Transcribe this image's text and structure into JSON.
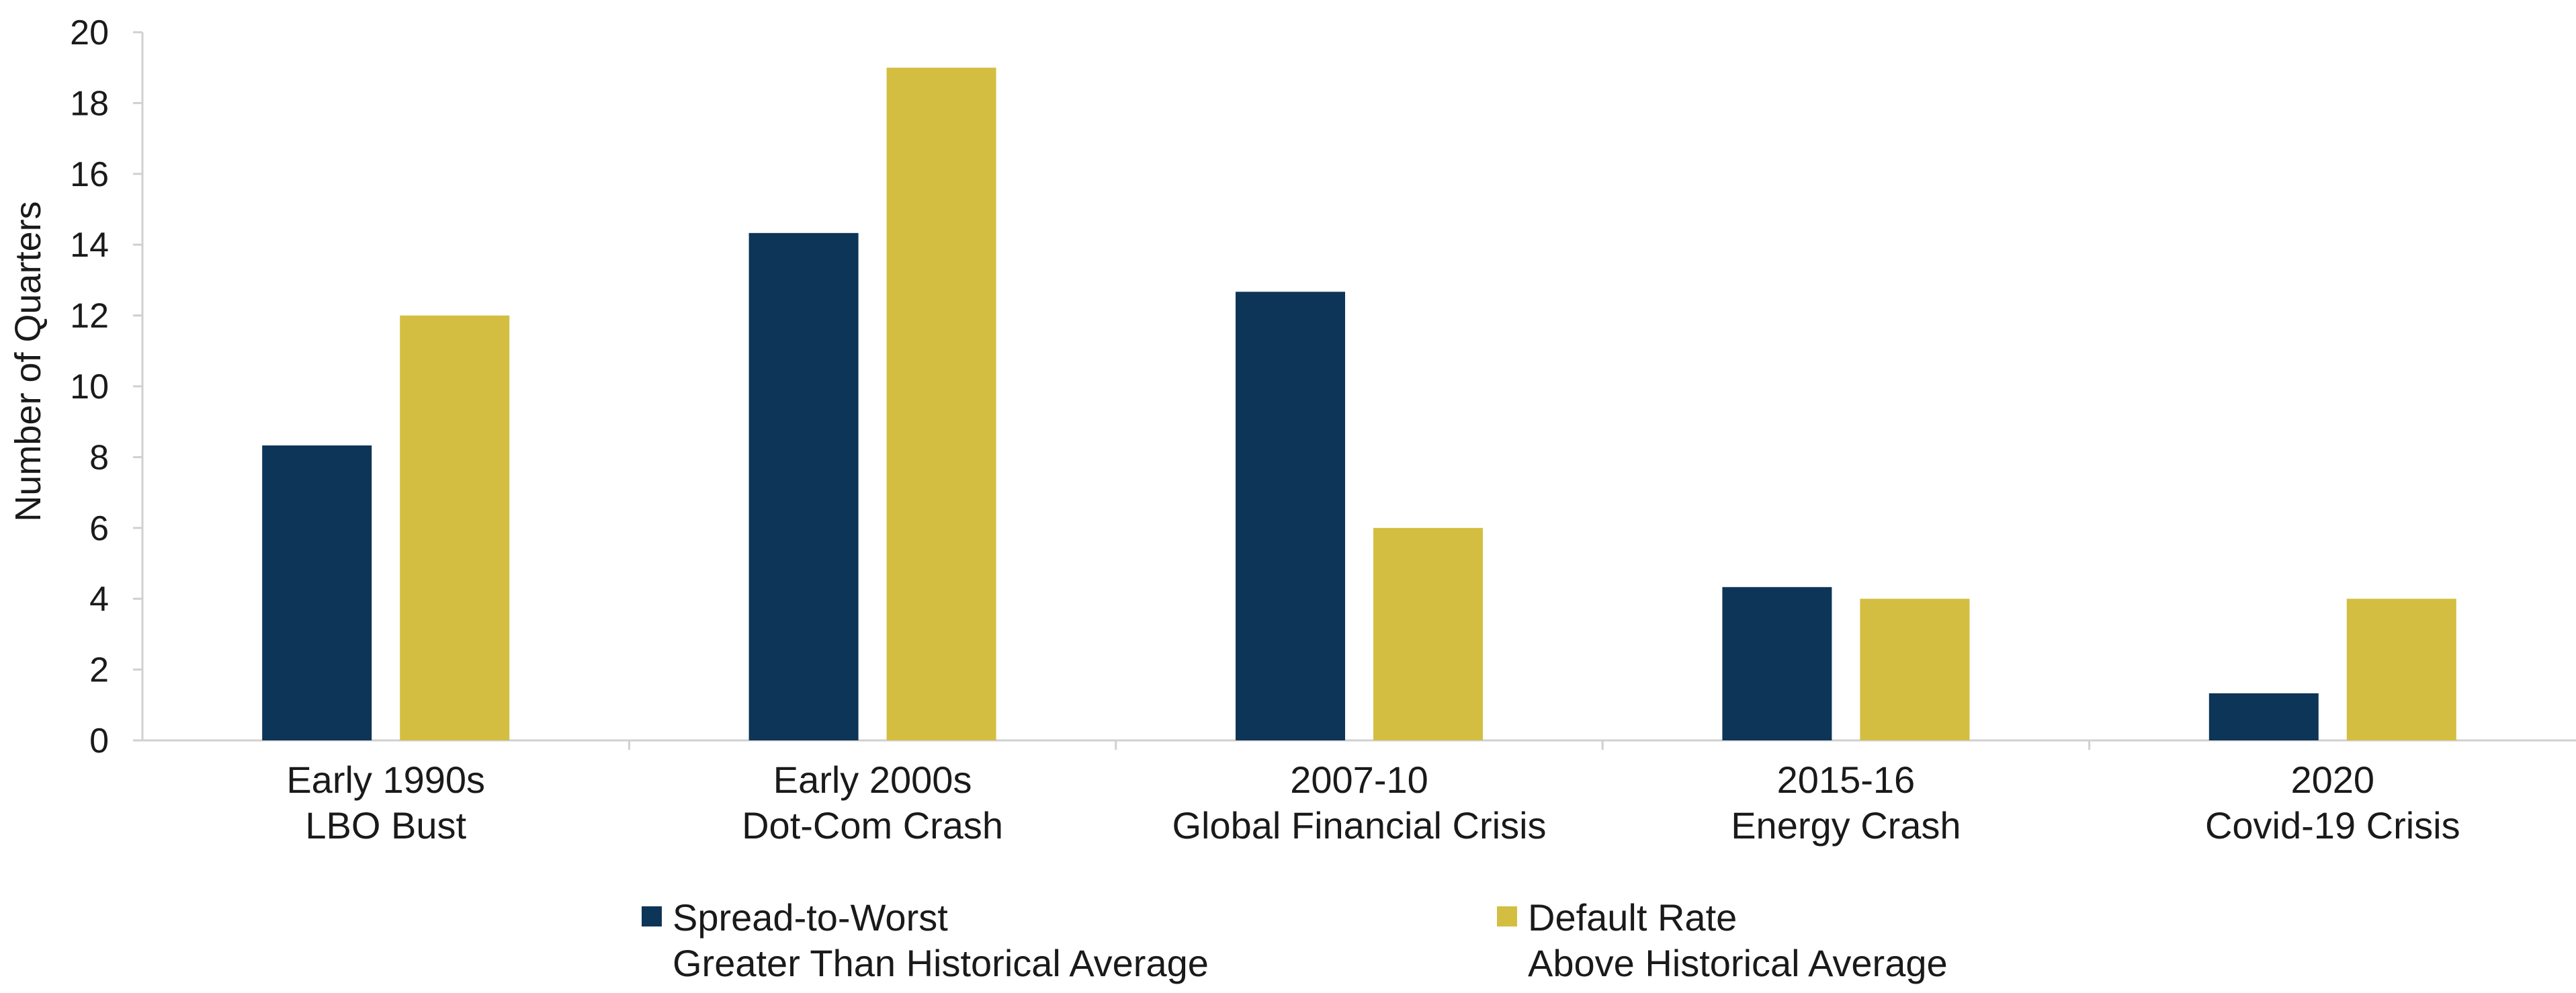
{
  "chart_data": {
    "type": "bar",
    "categories": [
      [
        "Early 1990s",
        "LBO Bust"
      ],
      [
        "Early 2000s",
        "Dot-Com Crash"
      ],
      [
        "2007-10",
        "Global Financial Crisis"
      ],
      [
        "2015-16",
        "Energy Crash"
      ],
      [
        "2020",
        "Covid-19 Crisis"
      ]
    ],
    "series": [
      {
        "name": [
          "Spread-to-Worst",
          "Greater Than Historical Average"
        ],
        "color": "#0d3557",
        "values": [
          8.33,
          14.33,
          12.67,
          4.33,
          1.33
        ]
      },
      {
        "name": [
          "Default Rate",
          "Above Historical Average"
        ],
        "color": "#d4be41",
        "values": [
          12,
          19,
          6,
          4,
          4
        ]
      }
    ],
    "title": "",
    "xlabel": "",
    "ylabel": "Number of Quarters",
    "ylim": [
      0,
      20
    ],
    "yticks": [
      0,
      2,
      4,
      6,
      8,
      10,
      12,
      14,
      16,
      18,
      20
    ],
    "grid": false,
    "legend_position": "bottom"
  }
}
